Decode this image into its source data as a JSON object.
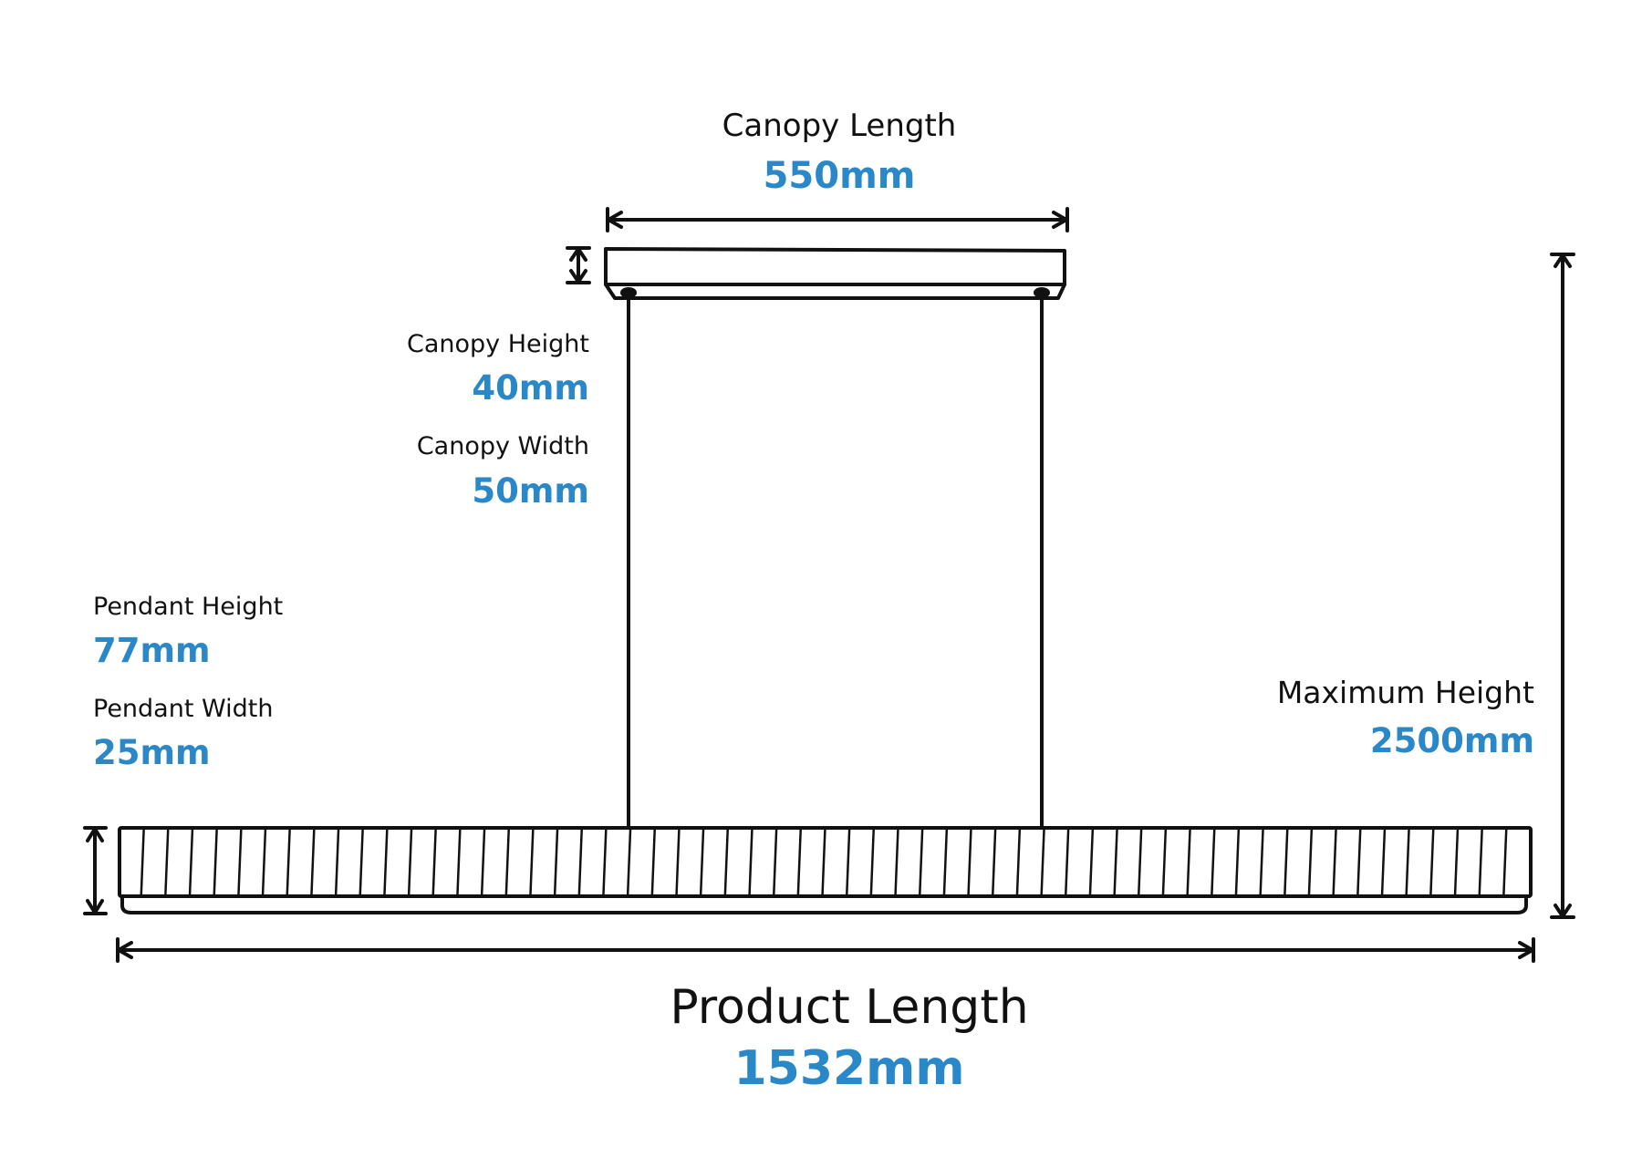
{
  "colors": {
    "ink": "#111111",
    "accent": "#2b88c8",
    "background": "#ffffff"
  },
  "dimensions": {
    "canopy_length": {
      "label": "Canopy Length",
      "value": "550mm"
    },
    "canopy_height": {
      "label": "Canopy Height",
      "value": "40mm"
    },
    "canopy_width": {
      "label": "Canopy Width",
      "value": "50mm"
    },
    "pendant_height": {
      "label": "Pendant Height",
      "value": "77mm"
    },
    "pendant_width": {
      "label": "Pendant Width",
      "value": "25mm"
    },
    "maximum_height": {
      "label": "Maximum Height",
      "value": "2500mm"
    },
    "product_length": {
      "label": "Product Length",
      "value": "1532mm"
    }
  },
  "pendant": {
    "slat_count": 58
  }
}
